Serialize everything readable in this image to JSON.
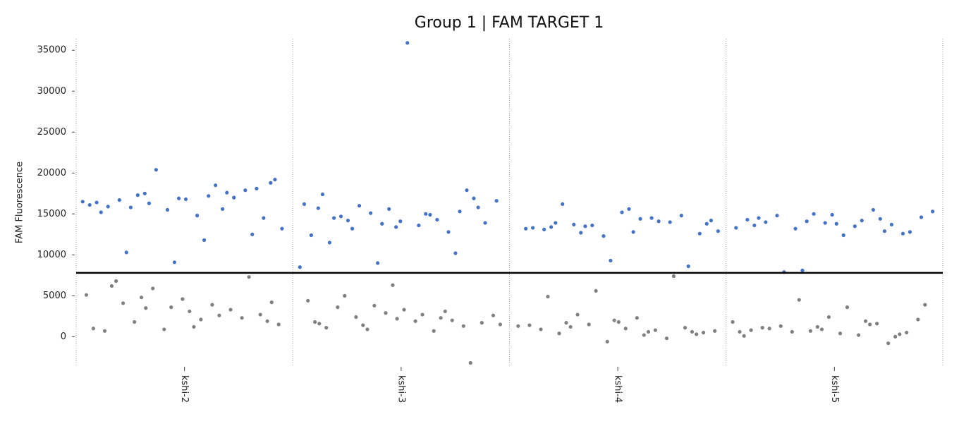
{
  "chart_data": {
    "type": "scatter",
    "title": "Group 1 | FAM TARGET 1",
    "y_label": "FAM Fluorescence",
    "categories": [
      "kshi-2",
      "kshi-3",
      "kshi-4",
      "kshi-5"
    ],
    "series": [
      {
        "color": "#4472c4",
        "values": [
          [
            16500,
            17200,
            15800,
            18100,
            16900,
            15200,
            17600,
            16300,
            19200,
            14800,
            16700,
            17900,
            15500,
            16100,
            18500,
            17300,
            14500,
            16800,
            15900,
            17000,
            20400,
            13200,
            11800,
            10300,
            12500,
            9100,
            16400,
            15600,
            17500,
            18800
          ],
          [
            14500,
            15300,
            13800,
            16200,
            14900,
            13200,
            15800,
            14100,
            17400,
            12800,
            15100,
            16600,
            13600,
            14700,
            17900,
            15600,
            12400,
            14300,
            16000,
            13900,
            35900,
            11500,
            10200,
            9000,
            8500,
            15000,
            14200,
            16900,
            13400,
            15700
          ],
          [
            13500,
            14200,
            12800,
            13900,
            14800,
            12300,
            13200,
            14500,
            13700,
            12600,
            15200,
            13100,
            14000,
            13600,
            12900,
            14400,
            16200,
            8600,
            9300,
            13300,
            14100,
            12700,
            13800,
            15600,
            13400
          ],
          [
            13800,
            14500,
            12900,
            14100,
            15300,
            13500,
            14800,
            12600,
            13900,
            14300,
            15500,
            13200,
            14600,
            12400,
            14000,
            13700,
            15000,
            13300,
            14200,
            7900,
            12800,
            14900,
            13600,
            14400,
            8100
          ]
        ]
      },
      {
        "color": "#808080",
        "values": [
          [
            3500,
            4200,
            1200,
            6800,
            2300,
            900,
            5100,
            3900,
            1800,
            2700,
            4600,
            700,
            3300,
            5900,
            1500,
            2100,
            4100,
            7300,
            3600,
            1000,
            2600,
            4800,
            1900,
            3100,
            6200
          ],
          [
            2200,
            1600,
            3100,
            900,
            2600,
            1900,
            3600,
            1300,
            2900,
            4400,
            700,
            2400,
            1700,
            3300,
            1100,
            2000,
            3800,
            1500,
            2700,
            5000,
            -3200,
            6300,
            1800,
            2300,
            1400
          ],
          [
            600,
            1200,
            300,
            1800,
            900,
            -200,
            1500,
            700,
            2300,
            400,
            1100,
            -600,
            1400,
            800,
            2700,
            500,
            1000,
            4900,
            7400,
            5600,
            1300,
            200,
            1700,
            600,
            2000
          ],
          [
            300,
            900,
            100,
            1500,
            600,
            2100,
            400,
            1100,
            -800,
            700,
            1800,
            200,
            1300,
            500,
            2400,
            800,
            1600,
            4500,
            3900,
            3600,
            1000,
            0,
            1200,
            600,
            1900
          ]
        ]
      }
    ],
    "threshold": 7800,
    "threshold_color": "#000000",
    "ylim": [
      -3500,
      36400
    ],
    "yticks": [
      0,
      5000,
      10000,
      15000,
      20000,
      25000,
      30000,
      35000
    ]
  }
}
